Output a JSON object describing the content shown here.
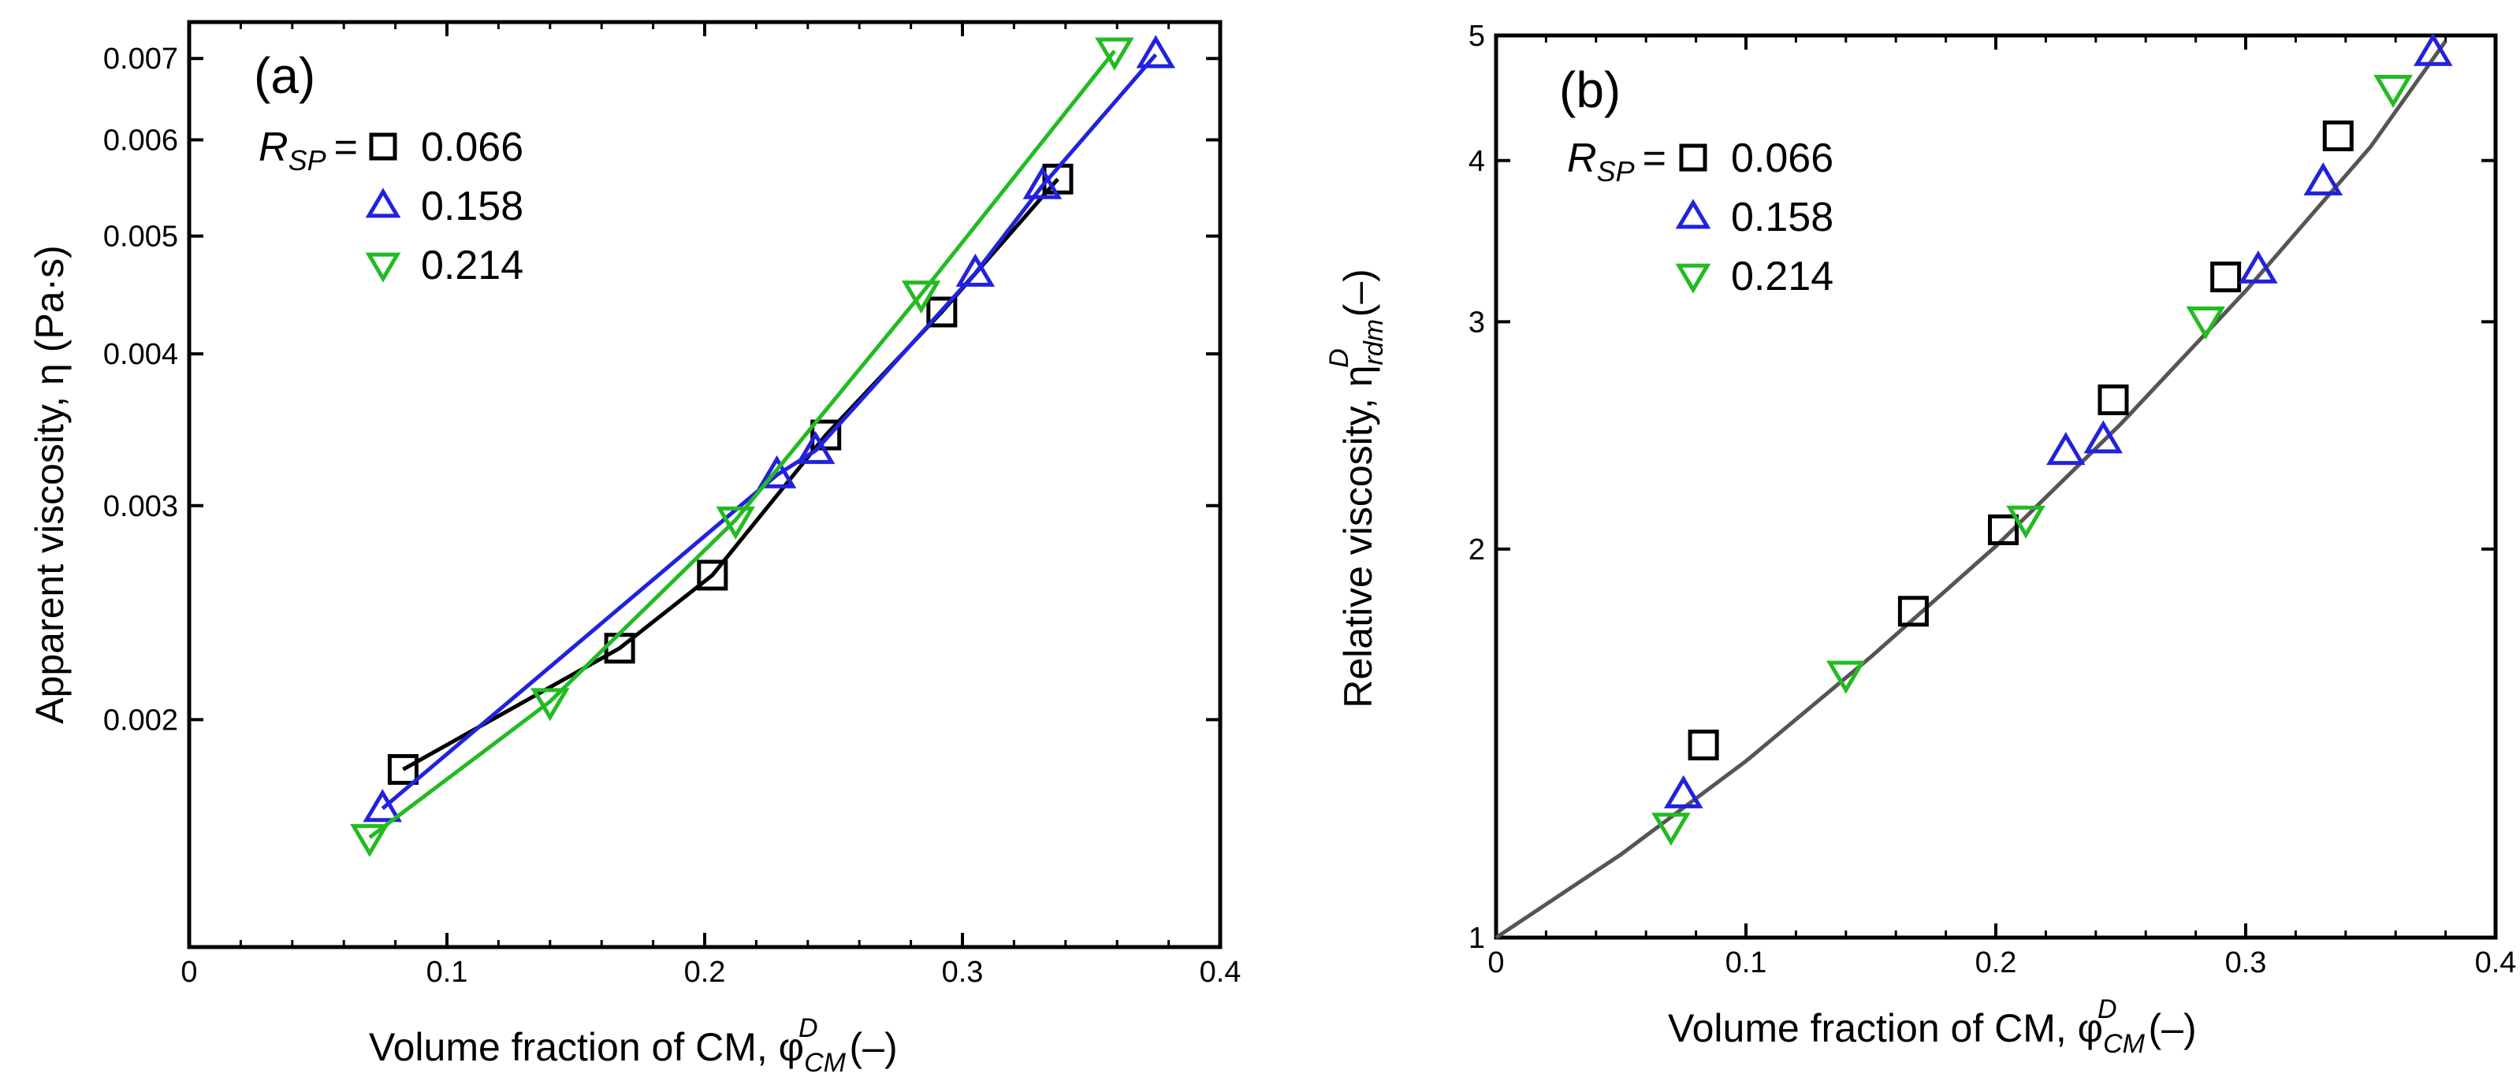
{
  "chart_data": [
    {
      "type": "line",
      "panel_label": "(a)",
      "xlabel": "Volume fraction of CM, φ",
      "ylabel": "Apparent viscosity, η (Pa·s)",
      "yscale": "log",
      "xlim": [
        0,
        0.4
      ],
      "ylim": [
        0.0013,
        0.0075
      ],
      "xticks": [
        0,
        0.1,
        0.2,
        0.3,
        0.4
      ],
      "xtick_labels": [
        "0",
        "0.1",
        "0.2",
        "0.3",
        "0.4"
      ],
      "yticks": [
        0.002,
        0.003,
        0.004,
        0.005,
        0.006,
        0.007
      ],
      "ytick_labels": [
        "0.002",
        "0.003",
        "0.004",
        "0.005",
        "0.006",
        "0.007"
      ],
      "legend_title": "R",
      "legend_title_sub": "SP",
      "series": [
        {
          "name": "0.066",
          "marker": "square",
          "color": "#000000",
          "line": true,
          "x": [
            0.083,
            0.167,
            0.203,
            0.247,
            0.292,
            0.337
          ],
          "y": [
            0.00182,
            0.00229,
            0.00263,
            0.00343,
            0.00433,
            0.00557
          ]
        },
        {
          "name": "0.158",
          "marker": "triangle-up",
          "color": "#2222dd",
          "line": true,
          "x": [
            0.075,
            0.228,
            0.243,
            0.305,
            0.331,
            0.375
          ],
          "y": [
            0.00169,
            0.00318,
            0.00333,
            0.00466,
            0.0055,
            0.00705
          ]
        },
        {
          "name": "0.214",
          "marker": "triangle-down",
          "color": "#22bb22",
          "line": true,
          "x": [
            0.07,
            0.14,
            0.212,
            0.284,
            0.359
          ],
          "y": [
            0.0016,
            0.00207,
            0.00292,
            0.00448,
            0.0071
          ]
        }
      ]
    },
    {
      "type": "scatter",
      "panel_label": "(b)",
      "xlabel": "Volume fraction of CM, φ",
      "ylabel": "Relative viscosity, η",
      "yscale": "log",
      "xlim": [
        0,
        0.4
      ],
      "ylim": [
        1,
        5
      ],
      "xticks": [
        0,
        0.1,
        0.2,
        0.3,
        0.4
      ],
      "xtick_labels": [
        "0",
        "0.1",
        "0.2",
        "0.3",
        "0.4"
      ],
      "yticks": [
        1,
        2,
        3,
        4,
        5
      ],
      "ytick_labels": [
        "1",
        "2",
        "3",
        "4",
        "5"
      ],
      "legend_title": "R",
      "legend_title_sub": "SP",
      "series": [
        {
          "name": "0.066",
          "marker": "square",
          "color": "#000000",
          "line": false,
          "x": [
            0.083,
            0.167,
            0.203,
            0.247,
            0.292,
            0.337
          ],
          "y": [
            1.41,
            1.79,
            2.07,
            2.61,
            3.25,
            4.18
          ]
        },
        {
          "name": "0.158",
          "marker": "triangle-up",
          "color": "#2222dd",
          "line": false,
          "x": [
            0.075,
            0.228,
            0.243,
            0.305,
            0.331,
            0.375
          ],
          "y": [
            1.29,
            2.38,
            2.43,
            3.29,
            3.85,
            4.85
          ]
        },
        {
          "name": "0.214",
          "marker": "triangle-down",
          "color": "#22bb22",
          "line": false,
          "x": [
            0.07,
            0.14,
            0.212,
            0.284,
            0.359
          ],
          "y": [
            1.22,
            1.6,
            2.11,
            3.01,
            4.55
          ]
        }
      ],
      "fit_curve": {
        "color": "#555555",
        "x": [
          0,
          0.05,
          0.1,
          0.15,
          0.2,
          0.25,
          0.3,
          0.35,
          0.38
        ],
        "y": [
          1.0,
          1.16,
          1.37,
          1.65,
          2.01,
          2.5,
          3.17,
          4.1,
          4.95
        ]
      }
    }
  ],
  "x_symbol_sub": "CM",
  "x_symbol_sup": "D",
  "x_unit": "(–)",
  "b_y_sub": "rdm",
  "b_y_sup": "D",
  "b_y_unit": "(–)"
}
